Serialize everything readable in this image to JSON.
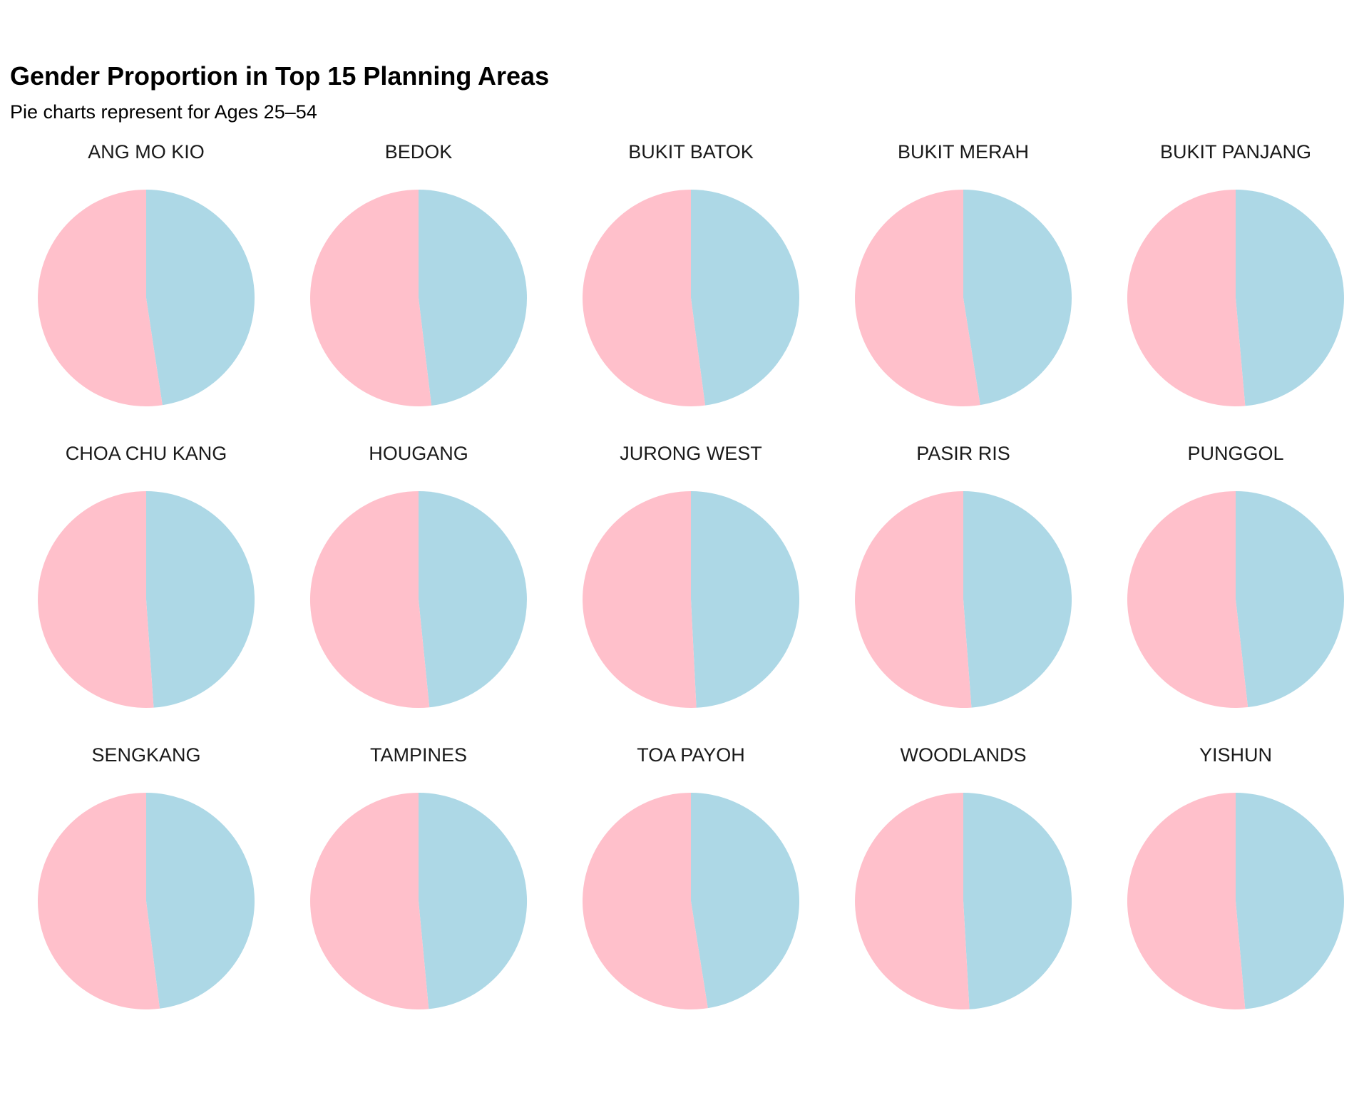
{
  "title": "Gender Proportion in Top 15 Planning Areas",
  "subtitle": "Pie charts represent for Ages 25–54",
  "colors": {
    "male": "#ADD8E6",
    "female": "#FFC0CB"
  },
  "chart_data": {
    "type": "pie",
    "layout": {
      "columns": 5,
      "rows": 3
    },
    "slice_order": [
      "male",
      "female"
    ],
    "start": "12 o'clock, clockwise",
    "panels": [
      {
        "area": "ANG MO KIO",
        "male_share": 0.476,
        "female_share": 0.524
      },
      {
        "area": "BEDOK",
        "male_share": 0.481,
        "female_share": 0.519
      },
      {
        "area": "BUKIT BATOK",
        "male_share": 0.479,
        "female_share": 0.521
      },
      {
        "area": "BUKIT MERAH",
        "male_share": 0.475,
        "female_share": 0.525
      },
      {
        "area": "BUKIT PANJANG",
        "male_share": 0.486,
        "female_share": 0.514
      },
      {
        "area": "CHOA CHU KANG",
        "male_share": 0.489,
        "female_share": 0.511
      },
      {
        "area": "HOUGANG",
        "male_share": 0.484,
        "female_share": 0.516
      },
      {
        "area": "JURONG WEST",
        "male_share": 0.492,
        "female_share": 0.508
      },
      {
        "area": "PASIR RIS",
        "male_share": 0.488,
        "female_share": 0.512
      },
      {
        "area": "PUNGGOL",
        "male_share": 0.482,
        "female_share": 0.518
      },
      {
        "area": "SENGKANG",
        "male_share": 0.48,
        "female_share": 0.52
      },
      {
        "area": "TAMPINES",
        "male_share": 0.485,
        "female_share": 0.515
      },
      {
        "area": "TOA PAYOH",
        "male_share": 0.475,
        "female_share": 0.525
      },
      {
        "area": "WOODLANDS",
        "male_share": 0.491,
        "female_share": 0.509
      },
      {
        "area": "YISHUN",
        "male_share": 0.486,
        "female_share": 0.514
      }
    ]
  }
}
